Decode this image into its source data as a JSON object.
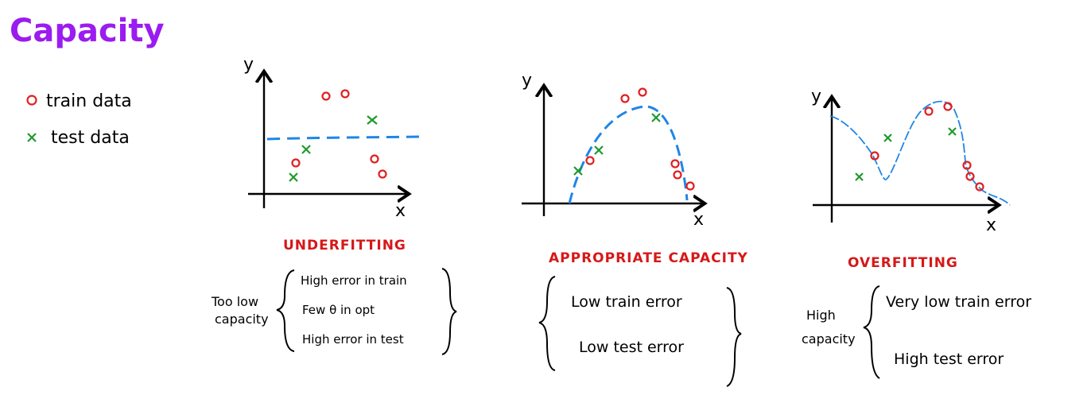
{
  "title": "Capacity",
  "legend": {
    "train_label": "train data",
    "test_label": "test data"
  },
  "colors": {
    "title": "#9b1cf0",
    "train": "#e02020",
    "test": "#1e9a2a",
    "curve": "#1f86e6",
    "heading": "#d61818",
    "ink": "#000000"
  },
  "panels": [
    {
      "heading": "UNDERFITTING",
      "x_label": "x",
      "y_label": "y",
      "side_label": [
        "Too low",
        "capacity"
      ],
      "points": [
        "High error in train",
        "Few θ in opt",
        "High error in test"
      ]
    },
    {
      "heading": "APPROPRIATE CAPACITY",
      "x_label": "x",
      "y_label": "y",
      "side_label": [],
      "points": [
        "Low train error",
        "Low test error"
      ]
    },
    {
      "heading": "OVERFITTING",
      "x_label": "x",
      "y_label": "y",
      "side_label": [
        "High",
        "capacity"
      ],
      "points": [
        "Very low train error",
        "High test error"
      ]
    }
  ]
}
